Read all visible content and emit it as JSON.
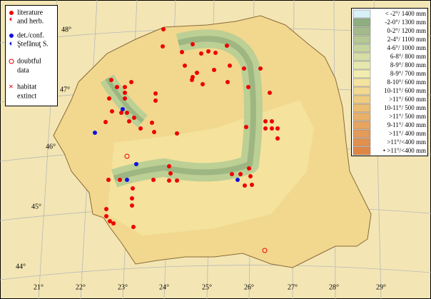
{
  "symbol_legend": [
    {
      "lines": [
        "literature",
        "and herb."
      ]
    },
    {
      "lines": [
        "det./conf.",
        "Ştefănuţ S."
      ]
    },
    {
      "lines": [
        "doubtful",
        "data"
      ]
    },
    {
      "lines": [
        "habitat",
        "extinct"
      ]
    }
  ],
  "climate_legend": [
    "< -2°/ 1400 mm",
    "-2-0°/ 1300 mm",
    "0-2°/ 1200 mm",
    "2-4°/ 1100 mm",
    "4-6°/ 1000 mm",
    "6-8°/  800 mm",
    "8-9°/  800 mm",
    "8-9°/  700 mm",
    "8-10°/  600 mm",
    "10-11°/ 600 mm",
    ">11°/  600 mm",
    "10-11°/ 500 mm",
    ">11°/  500 mm",
    "9-11°/  400 mm",
    ">11°/  400 mm",
    ">11°/<400 mm",
    "• >11°/<400 mm"
  ],
  "latitudes": [
    "48°",
    "47°",
    "46°",
    "45°",
    "44°"
  ],
  "longitudes": [
    "21°",
    "22°",
    "23°",
    "24°",
    "25°",
    "26°",
    "27°",
    "28°",
    "29°"
  ]
}
